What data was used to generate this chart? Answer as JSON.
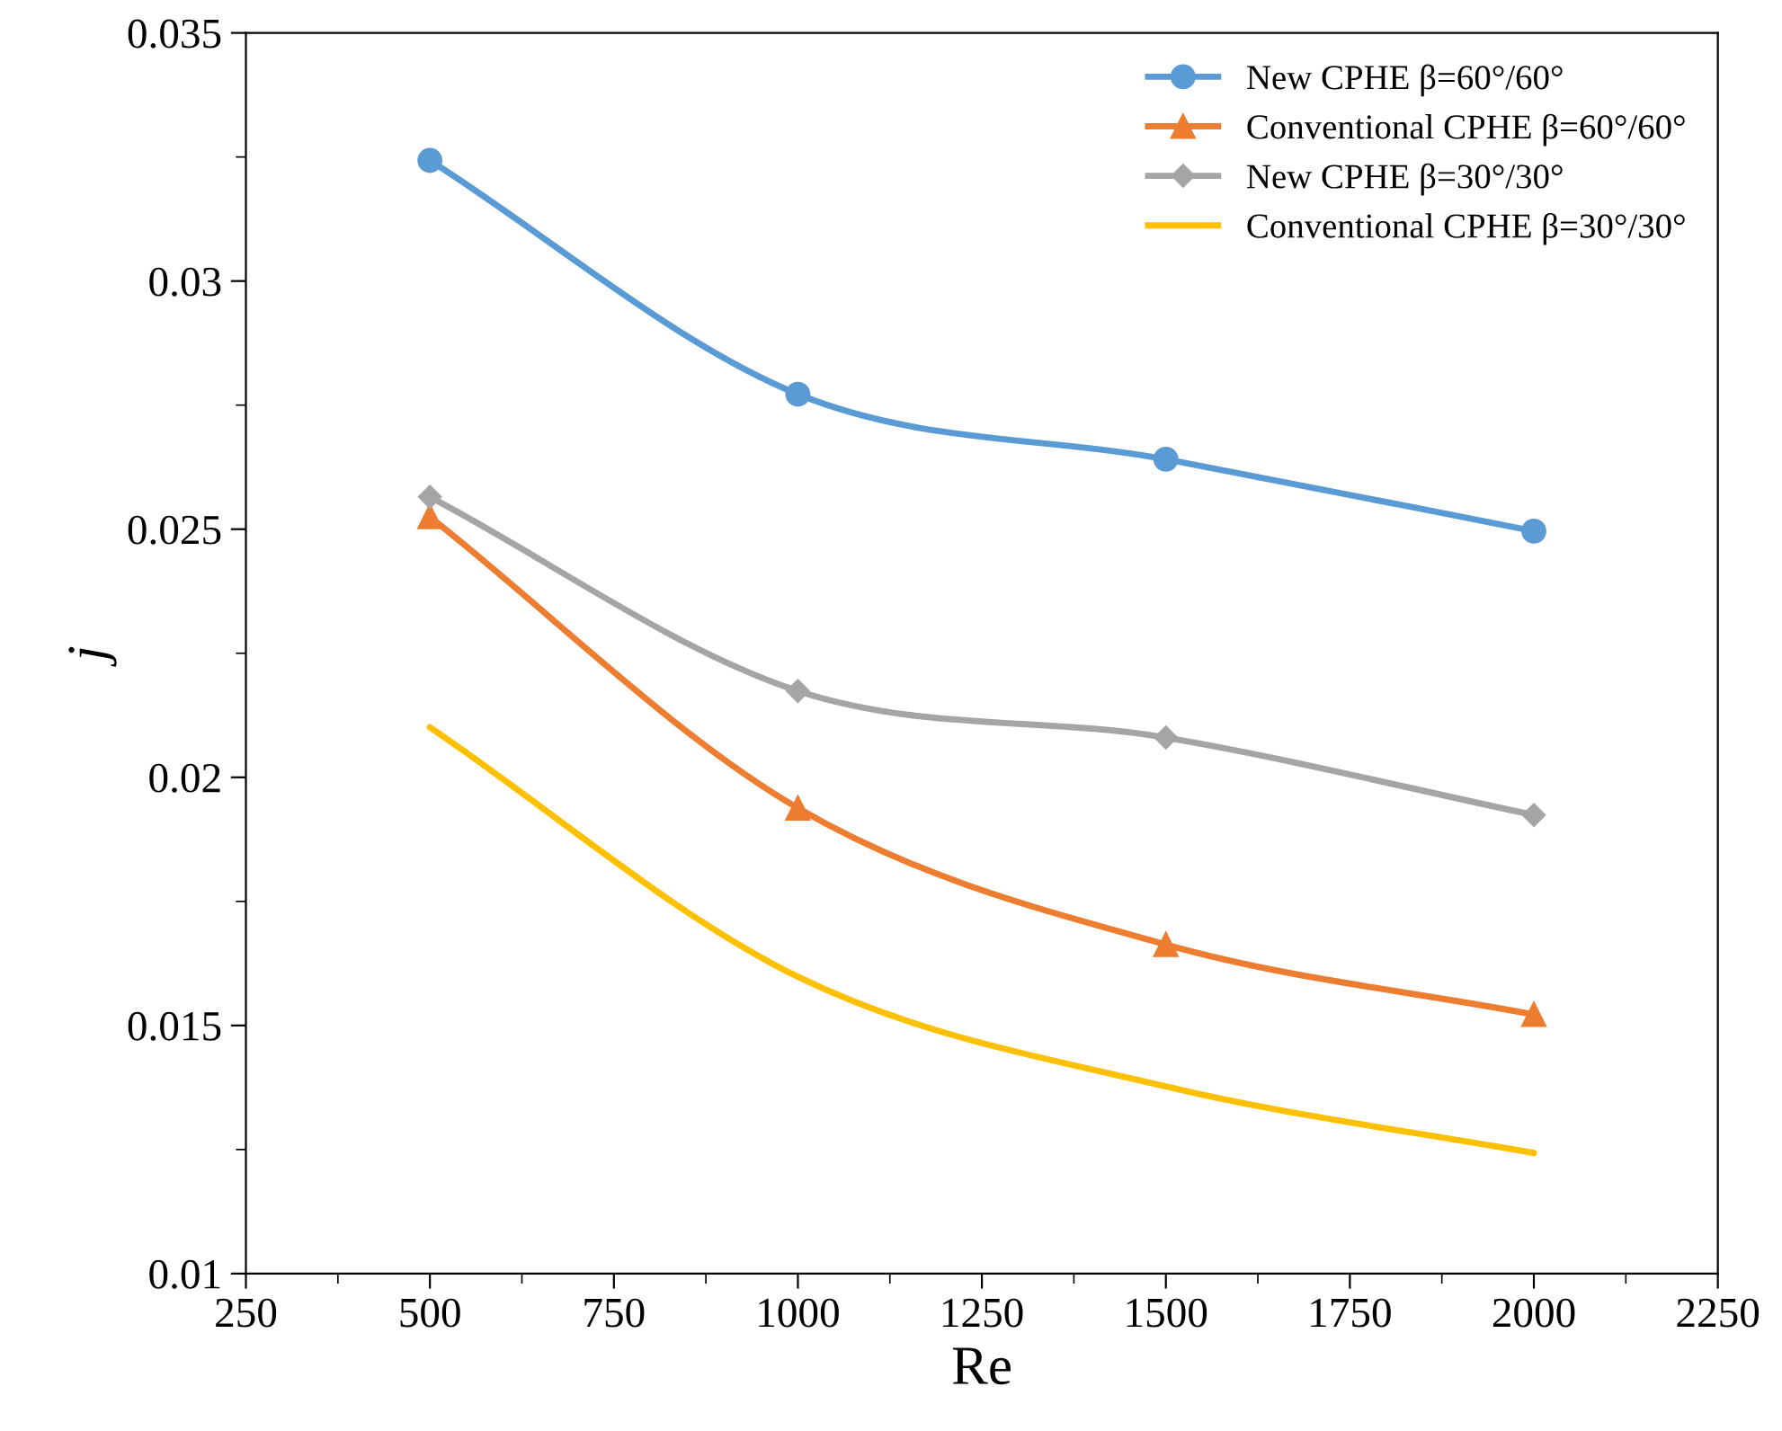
{
  "chart_data": {
    "type": "line",
    "xlabel": "Re",
    "ylabel": "j",
    "x": [
      500,
      1000,
      1500,
      2000
    ],
    "series": [
      {
        "name": "New CPHE β=60°/60°",
        "color": "#5b9bd5",
        "marker": "circle",
        "values": [
          0.03243,
          0.02772,
          0.02641,
          0.02496
        ]
      },
      {
        "name": "Conventional CPHE β=60°/60°",
        "color": "#ed7d31",
        "marker": "triangle",
        "values": [
          0.02525,
          0.01938,
          0.01663,
          0.01522
        ]
      },
      {
        "name": "New CPHE β=30°/30°",
        "color": "#a5a5a5",
        "marker": "diamond",
        "values": [
          0.02565,
          0.02174,
          0.0208,
          0.01924
        ]
      },
      {
        "name": "Conventional CPHE β=30°/30°",
        "color": "#ffc000",
        "marker": "none",
        "values": [
          0.02101,
          0.01598,
          0.01377,
          0.01243
        ]
      }
    ],
    "xlim": [
      250,
      2250
    ],
    "xticks": [
      250,
      500,
      750,
      1000,
      1250,
      1500,
      1750,
      2000,
      2250
    ],
    "ylim": [
      0.01,
      0.035
    ],
    "yticks": [
      0.01,
      0.015,
      0.02,
      0.025,
      0.03,
      0.035
    ],
    "grid": false,
    "legend": "top right",
    "line_style": "solid"
  }
}
